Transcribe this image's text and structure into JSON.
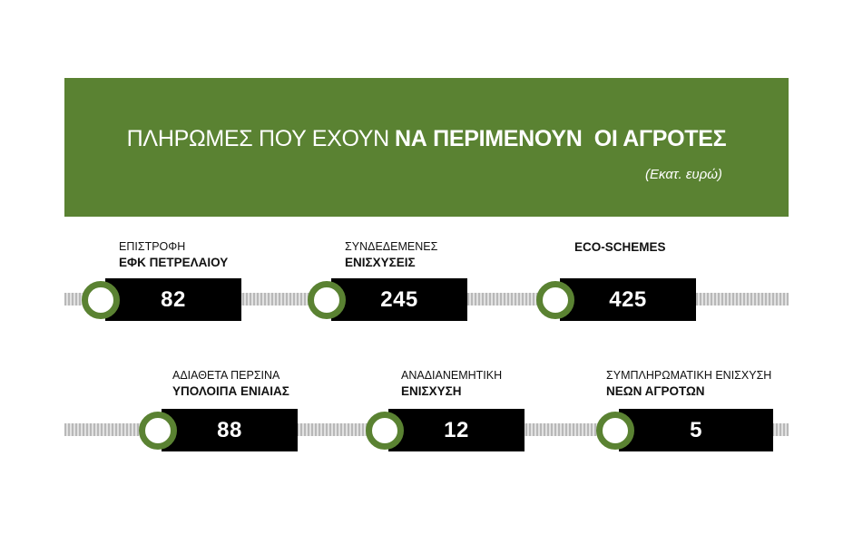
{
  "header": {
    "title_light": "ΠΛΗΡΩΜΕΣ ΠΟΥ ΕΧΟΥΝ",
    "title_bold": "ΝΑ ΠΕΡΙΜΕΝΟΥΝ  ΟΙ ΑΓΡΟΤΕΣ",
    "subtitle": "(Εκατ. ευρώ)"
  },
  "colors": {
    "accent": "#5a8232",
    "box": "#000000",
    "track": "#c8c8c8"
  },
  "chart_data": {
    "type": "table",
    "title": "ΠΛΗΡΩΜΕΣ ΠΟΥ ΕΧΟΥΝ ΝΑ ΠΕΡΙΜΕΝΟΥΝ ΟΙ ΑΓΡΟΤΕΣ",
    "subtitle": "(Εκατ. ευρώ)",
    "items": [
      {
        "line1": "ΕΠΙΣΤΡΟΦΗ",
        "line2": "ΕΦΚ ΠΕΤΡΕΛΑΙΟΥ",
        "value": "82"
      },
      {
        "line1": "ΣΥΝΔΕΔΕΜΕΝΕΣ",
        "line2": "ΕΝΙΣΧΥΣΕΙΣ",
        "value": "245"
      },
      {
        "line1": "",
        "line2": "ECO-SCHEMES",
        "value": "425"
      },
      {
        "line1": "ΑΔΙΑΘΕΤΑ ΠΕΡΣΙΝΑ",
        "line2": "ΥΠΟΛΟΙΠΑ ΕΝΙΑΙΑΣ",
        "value": "88"
      },
      {
        "line1": "ΑΝΑΔΙΑΝΕΜΗΤΙΚΗ",
        "line2": "ΕΝΙΣΧΥΣΗ",
        "value": "12"
      },
      {
        "line1": "ΣΥΜΠΛΗΡΩΜΑΤΙΚΗ ΕΝΙΣΧΥΣΗ",
        "line2": "ΝΕΩΝ ΑΓΡΟΤΩΝ",
        "value": "5"
      }
    ]
  }
}
